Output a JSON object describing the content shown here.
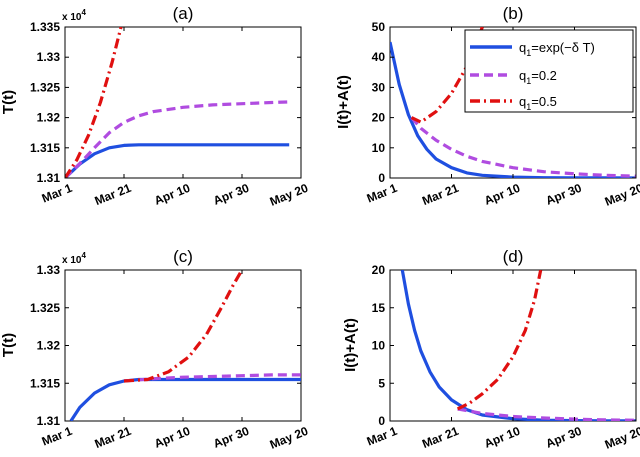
{
  "colors": {
    "blue": "#1f4fe0",
    "purple": "#b04ce0",
    "red": "#e01010"
  },
  "legend": {
    "entries": [
      {
        "series": "exp",
        "pre": "q",
        "sub": "1",
        "post": "=exp(−δ T)"
      },
      {
        "series": "q02",
        "pre": "q",
        "sub": "1",
        "post": "=0.2"
      },
      {
        "series": "q05",
        "pre": "q",
        "sub": "1",
        "post": "=0.5"
      }
    ]
  },
  "chart_data": [
    {
      "id": "a",
      "type": "line",
      "title": "(a)",
      "xlabel": "",
      "ylabel": "T(t)",
      "multiplier_base": "x 10",
      "multiplier_exp": "4",
      "xticks": [
        {
          "v": 0,
          "label": "Mar 1"
        },
        {
          "v": 20,
          "label": "Mar 21"
        },
        {
          "v": 40,
          "label": "Apr 10"
        },
        {
          "v": 60,
          "label": "Apr 30"
        },
        {
          "v": 80,
          "label": "May 20"
        }
      ],
      "xlim": [
        0,
        80
      ],
      "ylim": [
        1.31,
        1.335
      ],
      "yticks": [
        {
          "v": 1.31,
          "label": "1.31"
        },
        {
          "v": 1.315,
          "label": "1.315"
        },
        {
          "v": 1.32,
          "label": "1.32"
        },
        {
          "v": 1.325,
          "label": "1.325"
        },
        {
          "v": 1.33,
          "label": "1.33"
        },
        {
          "v": 1.335,
          "label": "1.335"
        }
      ],
      "series": [
        {
          "name": "q1=exp(-δ T)",
          "color": "blue",
          "dash": "solid",
          "x": [
            0,
            5,
            10,
            15,
            20,
            25,
            30,
            40,
            50,
            60,
            70,
            76
          ],
          "y": [
            1.31,
            1.3123,
            1.314,
            1.315,
            1.3154,
            1.3155,
            1.3155,
            1.3155,
            1.3155,
            1.3155,
            1.3155,
            1.3155
          ]
        },
        {
          "name": "q1=0.2",
          "color": "purple",
          "dash": "dash",
          "x": [
            0,
            5,
            10,
            15,
            20,
            25,
            30,
            40,
            50,
            60,
            70,
            76
          ],
          "y": [
            1.31,
            1.3124,
            1.315,
            1.3175,
            1.3192,
            1.3203,
            1.321,
            1.3217,
            1.3221,
            1.3223,
            1.3225,
            1.3226
          ]
        },
        {
          "name": "q1=0.5",
          "color": "red",
          "dash": "dashdot",
          "x": [
            0,
            4,
            8,
            12,
            16,
            19
          ],
          "y": [
            1.31,
            1.313,
            1.3171,
            1.3225,
            1.3292,
            1.335
          ]
        }
      ]
    },
    {
      "id": "b",
      "type": "line",
      "title": "(b)",
      "xlabel": "",
      "ylabel": "I(t)+A(t)",
      "xticks": [
        {
          "v": 0,
          "label": "Mar 1"
        },
        {
          "v": 20,
          "label": "Mar 21"
        },
        {
          "v": 40,
          "label": "Apr 10"
        },
        {
          "v": 60,
          "label": "Apr 30"
        },
        {
          "v": 80,
          "label": "May 20"
        }
      ],
      "xlim": [
        0,
        80
      ],
      "ylim": [
        0,
        50
      ],
      "yticks": [
        {
          "v": 0,
          "label": "0"
        },
        {
          "v": 10,
          "label": "10"
        },
        {
          "v": 20,
          "label": "20"
        },
        {
          "v": 30,
          "label": "30"
        },
        {
          "v": 40,
          "label": "40"
        },
        {
          "v": 50,
          "label": "50"
        }
      ],
      "series": [
        {
          "name": "q1=exp(-δ T)",
          "color": "blue",
          "dash": "solid",
          "x": [
            0,
            3,
            6,
            9,
            12,
            15,
            20,
            25,
            30,
            40,
            50,
            60,
            70,
            80
          ],
          "y": [
            45,
            31,
            21,
            14,
            9.5,
            6.3,
            3.4,
            1.7,
            0.9,
            0.3,
            0.1,
            0.05,
            0.02,
            0.01
          ]
        },
        {
          "name": "q1=0.2",
          "color": "purple",
          "dash": "dash",
          "x": [
            7,
            10,
            15,
            20,
            25,
            30,
            40,
            50,
            60,
            70,
            80
          ],
          "y": [
            20,
            16.5,
            12.5,
            9.5,
            7.2,
            5.5,
            3.4,
            2.1,
            1.4,
            0.9,
            0.6
          ]
        },
        {
          "name": "q1=0.5",
          "color": "red",
          "dash": "dashdot",
          "x": [
            7,
            10,
            15,
            20,
            25,
            28,
            30
          ],
          "y": [
            20,
            18.5,
            22,
            28,
            37,
            44,
            50
          ]
        }
      ]
    },
    {
      "id": "c",
      "type": "line",
      "title": "(c)",
      "xlabel": "",
      "ylabel": "T(t)",
      "multiplier_base": "x 10",
      "multiplier_exp": "4",
      "xticks": [
        {
          "v": 0,
          "label": "Mar 1"
        },
        {
          "v": 20,
          "label": "Mar 21"
        },
        {
          "v": 40,
          "label": "Apr 10"
        },
        {
          "v": 60,
          "label": "Apr 30"
        },
        {
          "v": 80,
          "label": "May 20"
        }
      ],
      "xlim": [
        0,
        80
      ],
      "ylim": [
        1.31,
        1.33
      ],
      "yticks": [
        {
          "v": 1.31,
          "label": "1.31"
        },
        {
          "v": 1.315,
          "label": "1.315"
        },
        {
          "v": 1.32,
          "label": "1.32"
        },
        {
          "v": 1.325,
          "label": "1.325"
        },
        {
          "v": 1.33,
          "label": "1.33"
        }
      ],
      "series": [
        {
          "name": "q1=exp(-δ T)",
          "color": "blue",
          "dash": "solid",
          "x": [
            2,
            5,
            10,
            15,
            20,
            25,
            30,
            40,
            50,
            60,
            70,
            80
          ],
          "y": [
            1.31,
            1.3118,
            1.3137,
            1.3148,
            1.3153,
            1.3155,
            1.3155,
            1.3155,
            1.3155,
            1.3155,
            1.3155,
            1.3155
          ]
        },
        {
          "name": "q1=0.2",
          "color": "purple",
          "dash": "dash",
          "x": [
            20,
            30,
            40,
            50,
            60,
            70,
            80
          ],
          "y": [
            1.3153,
            1.3156,
            1.3158,
            1.3159,
            1.316,
            1.3161,
            1.3161
          ]
        },
        {
          "name": "q1=0.5",
          "color": "red",
          "dash": "dashdot",
          "x": [
            20,
            28,
            35,
            42,
            48,
            53,
            57,
            60
          ],
          "y": [
            1.3153,
            1.3155,
            1.3165,
            1.3185,
            1.3215,
            1.325,
            1.328,
            1.33
          ]
        }
      ]
    },
    {
      "id": "d",
      "type": "line",
      "title": "(d)",
      "xlabel": "",
      "ylabel": "I(t)+A(t)",
      "xticks": [
        {
          "v": 0,
          "label": "Mar 1"
        },
        {
          "v": 20,
          "label": "Mar 21"
        },
        {
          "v": 40,
          "label": "Apr 10"
        },
        {
          "v": 60,
          "label": "Apr 30"
        },
        {
          "v": 80,
          "label": "May 20"
        }
      ],
      "xlim": [
        0,
        80
      ],
      "ylim": [
        0,
        20
      ],
      "yticks": [
        {
          "v": 0,
          "label": "0"
        },
        {
          "v": 5,
          "label": "5"
        },
        {
          "v": 10,
          "label": "10"
        },
        {
          "v": 15,
          "label": "15"
        },
        {
          "v": 20,
          "label": "20"
        }
      ],
      "series": [
        {
          "name": "q1=exp(-δ T)",
          "color": "blue",
          "dash": "solid",
          "x": [
            4,
            6,
            8,
            10,
            13,
            16,
            20,
            25,
            30,
            40,
            50,
            60,
            70,
            80
          ],
          "y": [
            20,
            15.5,
            12,
            9.3,
            6.5,
            4.5,
            2.8,
            1.5,
            0.8,
            0.3,
            0.1,
            0.05,
            0.02,
            0.01
          ]
        },
        {
          "name": "q1=0.2",
          "color": "purple",
          "dash": "dash",
          "x": [
            22,
            26,
            30,
            35,
            40,
            50,
            60,
            70,
            80
          ],
          "y": [
            1.6,
            1.3,
            1.0,
            0.8,
            0.6,
            0.4,
            0.25,
            0.15,
            0.1
          ]
        },
        {
          "name": "q1=0.5",
          "color": "red",
          "dash": "dashdot",
          "x": [
            22,
            26,
            30,
            35,
            40,
            44,
            47,
            49
          ],
          "y": [
            1.6,
            2.4,
            3.6,
            5.5,
            8.5,
            12,
            16,
            20
          ]
        }
      ]
    }
  ]
}
